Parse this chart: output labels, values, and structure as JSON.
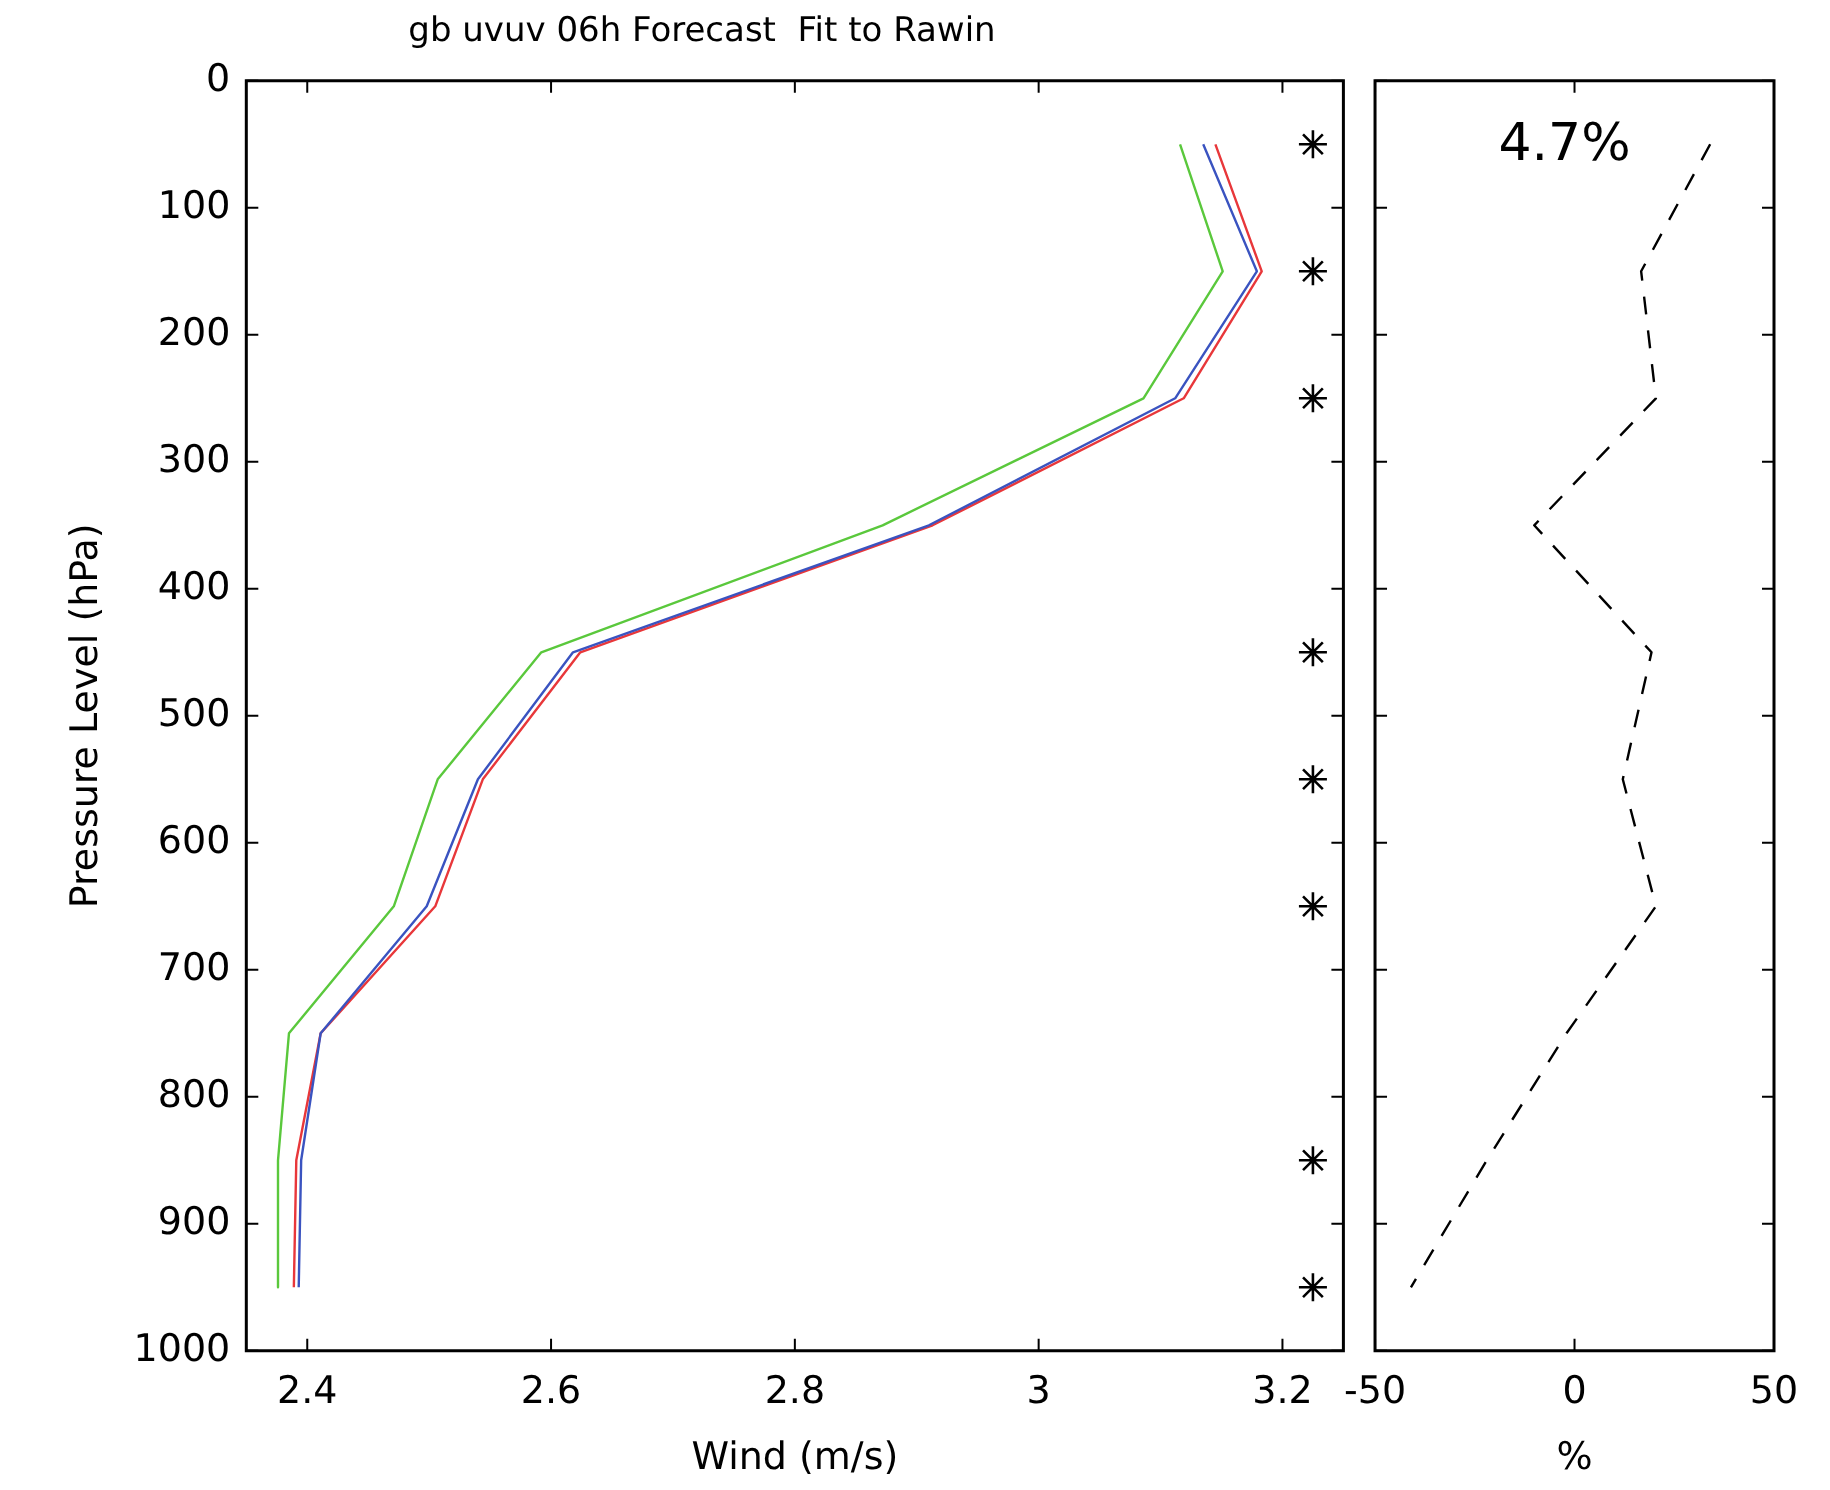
{
  "chart_data": [
    {
      "type": "line",
      "title": "gb uvuv 06h Forecast  Fit to Rawin",
      "xlabel": "Wind (m/s)",
      "ylabel": "Pressure Level (hPa)",
      "xlim": [
        2.35,
        3.25
      ],
      "xticks": [
        2.4,
        2.6,
        2.8,
        3,
        3.2
      ],
      "ylim": [
        1000,
        0
      ],
      "yticks": [
        0,
        100,
        200,
        300,
        400,
        500,
        600,
        700,
        800,
        900,
        1000
      ],
      "marker": "none",
      "series": [
        {
          "color": "#5ac83c",
          "x": [
            3.116,
            3.151,
            3.086,
            2.872,
            2.592,
            2.507,
            2.471,
            2.385,
            2.376,
            2.376
          ],
          "values": [
            50,
            150,
            250,
            350,
            450,
            550,
            650,
            750,
            850,
            950
          ]
        },
        {
          "color": "#3a53c0",
          "x": [
            3.135,
            3.179,
            3.112,
            2.91,
            2.618,
            2.54,
            2.498,
            2.411,
            2.395,
            2.393
          ],
          "values": [
            50,
            150,
            250,
            350,
            450,
            550,
            650,
            750,
            850,
            950
          ]
        },
        {
          "color": "#e8373a",
          "x": [
            3.145,
            3.183,
            3.119,
            2.913,
            2.624,
            2.544,
            2.505,
            2.411,
            2.391,
            2.389
          ],
          "values": [
            50,
            150,
            250,
            350,
            450,
            550,
            650,
            750,
            850,
            950
          ]
        },
        {
          "type": "scatter",
          "marker": "cross",
          "color": "#000000",
          "x": [
            3.225,
            3.225,
            3.225,
            3.225,
            3.225,
            3.225,
            3.225,
            3.225
          ],
          "values": [
            50,
            150,
            250,
            450,
            550,
            650,
            850,
            950
          ]
        }
      ]
    },
    {
      "type": "line",
      "xlabel": "%",
      "xlim": [
        -50,
        50
      ],
      "xticks": [
        -50,
        0,
        50
      ],
      "ylim": [
        1000,
        0
      ],
      "yticks": [
        0,
        100,
        200,
        300,
        400,
        500,
        600,
        700,
        800,
        900,
        1000
      ],
      "tick_labels": "x",
      "marker": "none",
      "line_style": "dashed",
      "annotations": [
        "4.7%"
      ],
      "series": [
        {
          "color": "#000000",
          "x": [
            34,
            16.7,
            20.4,
            -10.1,
            19.3,
            12.1,
            20.4,
            -2,
            -22,
            -41
          ],
          "values": [
            50,
            150,
            250,
            350,
            450,
            550,
            650,
            750,
            850,
            950
          ]
        }
      ]
    }
  ]
}
